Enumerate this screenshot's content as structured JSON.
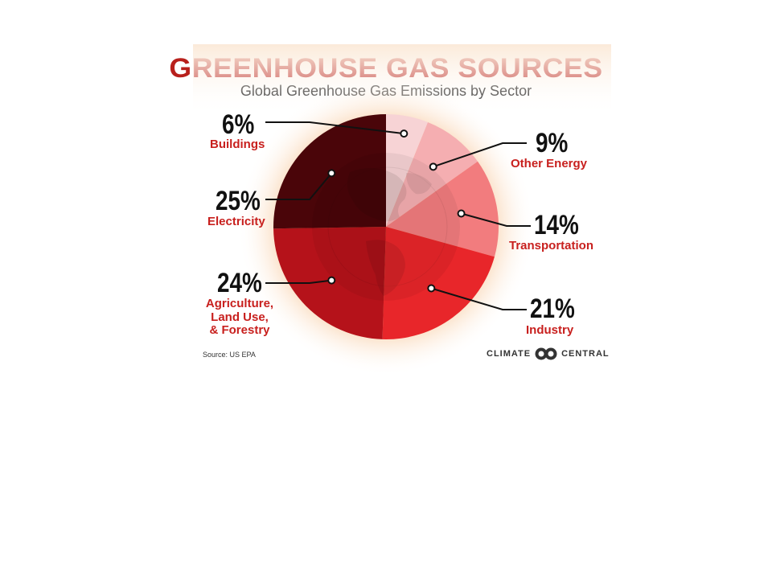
{
  "title": "GREENHOUSE GAS SOURCES",
  "subtitle": "Global Greenhouse Gas Emissions by Sector",
  "source": "Source: US EPA",
  "brand": {
    "left": "CLIMATE",
    "right": "CENTRAL"
  },
  "colors": {
    "title": "#b8201c",
    "label": "#c8201e",
    "glow": "#f4a15f"
  },
  "chart_data": {
    "type": "pie",
    "title": "GREENHOUSE GAS SOURCES",
    "subtitle": "Global Greenhouse Gas Emissions by Sector",
    "categories": [
      "Buildings",
      "Other Energy",
      "Transportation",
      "Industry",
      "Agriculture, Land Use, & Forestry",
      "Electricity"
    ],
    "values": [
      6,
      9,
      14,
      21,
      24,
      25
    ],
    "value_labels": [
      "6%",
      "9%",
      "14%",
      "21%",
      "24%",
      "25%"
    ],
    "category_labels": [
      [
        "Buildings"
      ],
      [
        "Other Energy"
      ],
      [
        "Transportation"
      ],
      [
        "Industry"
      ],
      [
        "Agriculture,",
        "Land Use,",
        "& Forestry"
      ],
      [
        "Electricity"
      ]
    ],
    "colors": [
      "#f7d3d5",
      "#f5aeb1",
      "#f27c7e",
      "#e8262a",
      "#b5121a",
      "#4a0509"
    ],
    "legend": "none",
    "grid": false
  }
}
